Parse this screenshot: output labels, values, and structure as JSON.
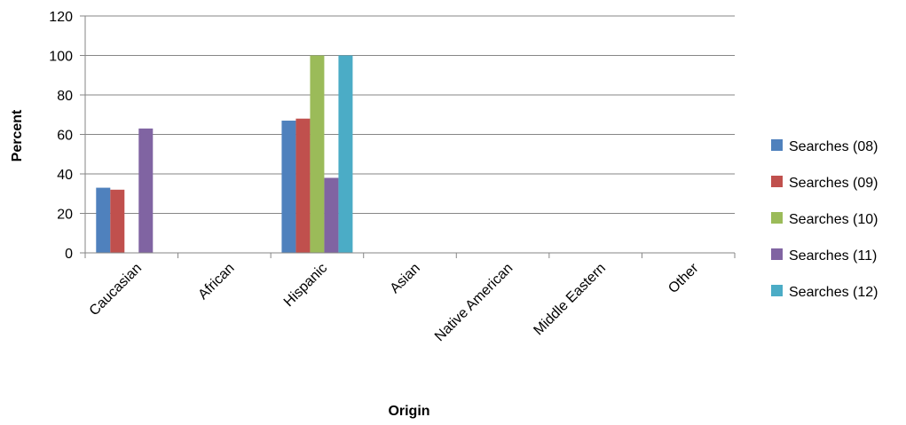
{
  "chart_data": {
    "type": "bar",
    "title": "",
    "xlabel": "Origin",
    "ylabel": "Percent",
    "ylim": [
      0,
      120
    ],
    "yticks": [
      0,
      20,
      40,
      60,
      80,
      100,
      120
    ],
    "grid": true,
    "legend_position": "right",
    "categories": [
      "Caucasian",
      "African",
      "Hispanic",
      "Asian",
      "Native American",
      "Middle Eastern",
      "Other"
    ],
    "series": [
      {
        "name": "Searches (08)",
        "color": "#4F81BD",
        "values": [
          33,
          0,
          67,
          0,
          0,
          0,
          0
        ]
      },
      {
        "name": "Searches (09)",
        "color": "#C0504D",
        "values": [
          32,
          0,
          68,
          0,
          0,
          0,
          0
        ]
      },
      {
        "name": "Searches (10)",
        "color": "#9BBB59",
        "values": [
          0,
          0,
          100,
          0,
          0,
          0,
          0
        ]
      },
      {
        "name": "Searches (11)",
        "color": "#8064A2",
        "values": [
          63,
          0,
          38,
          0,
          0,
          0,
          0
        ]
      },
      {
        "name": "Searches (12)",
        "color": "#4BACC6",
        "values": [
          0,
          0,
          100,
          0,
          0,
          0,
          0
        ]
      }
    ]
  }
}
